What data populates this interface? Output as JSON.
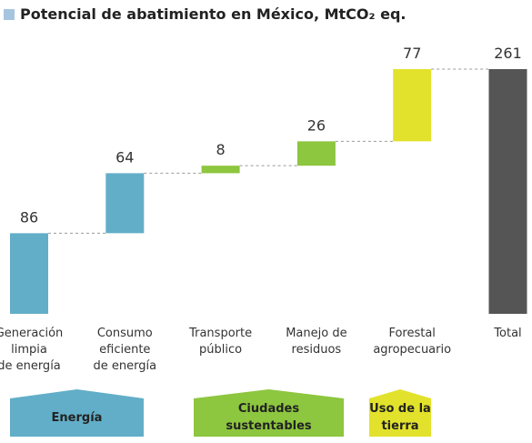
{
  "chart_data": {
    "type": "waterfall",
    "title": "Potencial de abatimiento en México, MtCO₂ eq.",
    "categories": [
      "Generación\nlimpia\nde energía",
      "Consumo\neficiente\nde energía",
      "Transporte\npúblico",
      "Manejo de\nresiduos",
      "Forestal\nagropecuario",
      "Total"
    ],
    "values": [
      86,
      64,
      8,
      26,
      77,
      261
    ],
    "colors": [
      "#62aec8",
      "#62aec8",
      "#8dc63f",
      "#8dc63f",
      "#e2e22c",
      "#555555"
    ],
    "groups": [
      {
        "name": "Energía",
        "color": "#62aec8"
      },
      {
        "name": "Ciudades\nsustentables",
        "color": "#8dc63f"
      },
      {
        "name": "Uso de la\ntierra",
        "color": "#e2e22c"
      }
    ]
  }
}
